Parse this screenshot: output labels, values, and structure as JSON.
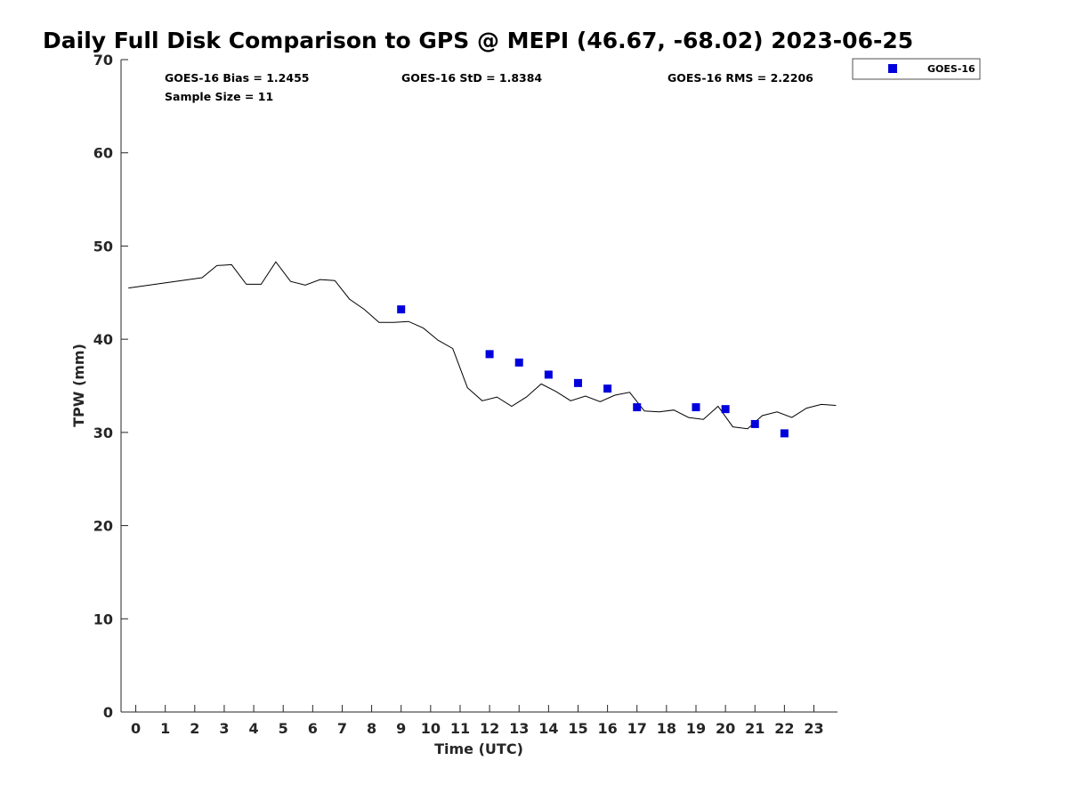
{
  "chart_data": {
    "type": "scatter",
    "title": "Daily Full Disk Comparison to GPS @ MEPI (46.67, -68.02) 2023-06-25",
    "xlabel": "Time (UTC)",
    "ylabel": "TPW (mm)",
    "xlim": [
      -0.5,
      23.8
    ],
    "ylim": [
      0,
      70
    ],
    "x_ticks": [
      0,
      1,
      2,
      3,
      4,
      5,
      6,
      7,
      8,
      9,
      10,
      11,
      12,
      13,
      14,
      15,
      16,
      17,
      18,
      19,
      20,
      21,
      22,
      23
    ],
    "y_ticks": [
      0,
      10,
      20,
      30,
      40,
      50,
      60,
      70
    ],
    "grid": false,
    "legend_position": "top-right",
    "stats": [
      {
        "key": "bias",
        "text": "GOES-16 Bias = 1.2455"
      },
      {
        "key": "std",
        "text": "GOES-16 StD = 1.8384"
      },
      {
        "key": "rms",
        "text": "GOES-16 RMS = 2.2206"
      },
      {
        "key": "sample",
        "text": "Sample Size = 11"
      }
    ],
    "series": [
      {
        "name": "GOES-16",
        "kind": "markers",
        "color": "#0000dd",
        "marker": "square",
        "x": [
          9,
          12,
          13,
          14,
          15,
          16,
          17,
          19,
          20,
          21,
          22
        ],
        "y": [
          43.2,
          38.4,
          37.5,
          36.2,
          35.3,
          34.7,
          32.7,
          32.7,
          32.5,
          30.9,
          29.9
        ]
      },
      {
        "kind": "line",
        "color": "#000000",
        "x": [
          -0.25,
          2.25,
          2.75,
          3.25,
          3.75,
          4.25,
          4.75,
          5.25,
          5.75,
          6.25,
          6.75,
          7.25,
          7.75,
          8.25,
          8.75,
          9.25,
          9.75,
          10.25,
          10.75,
          11.25,
          11.75,
          12.25,
          12.75,
          13.25,
          13.75,
          14.25,
          14.75,
          15.25,
          15.75,
          16.25,
          16.75,
          17.25,
          17.75,
          18.25,
          18.75,
          19.25,
          19.75,
          20.25,
          20.75,
          21.25,
          21.75,
          22.25,
          22.75,
          23.25,
          23.75
        ],
        "y": [
          45.5,
          46.6,
          47.9,
          48.0,
          45.9,
          45.9,
          48.3,
          46.2,
          45.8,
          46.4,
          46.3,
          44.3,
          43.2,
          41.8,
          41.8,
          41.9,
          41.2,
          39.9,
          39.0,
          34.8,
          33.4,
          33.8,
          32.8,
          33.8,
          35.2,
          34.4,
          33.4,
          33.9,
          33.3,
          34.0,
          34.3,
          32.3,
          32.2,
          32.4,
          31.6,
          31.4,
          32.8,
          30.6,
          30.4,
          31.8,
          32.2,
          31.6,
          32.6,
          33.0,
          32.9
        ]
      }
    ]
  }
}
